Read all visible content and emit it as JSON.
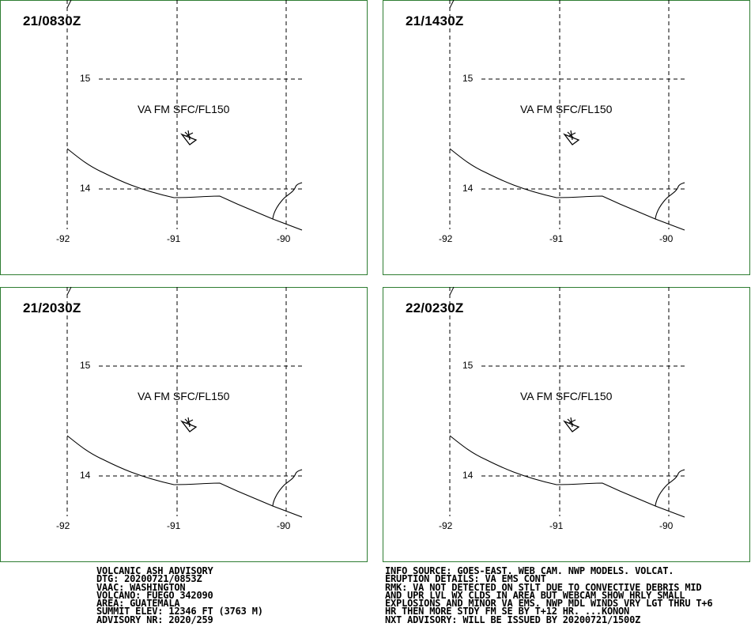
{
  "map": {
    "panels": [
      {
        "time": "21/0830Z",
        "ash_label": "VA FM SFC/FL150"
      },
      {
        "time": "21/1430Z",
        "ash_label": "VA FM SFC/FL150"
      },
      {
        "time": "21/2030Z",
        "ash_label": "VA FM SFC/FL150"
      },
      {
        "time": "22/0230Z",
        "ash_label": "VA FM SFC/FL150"
      }
    ],
    "lat_labels": {
      "north": "15",
      "south": "14"
    },
    "lon_labels": {
      "west": "-92",
      "center": "-91",
      "east": "-90"
    },
    "colors": {
      "frame": "#2e7d32",
      "lines": "#000000"
    }
  },
  "advisory_left": [
    "VOLCANIC ASH ADVISORY",
    "DTG: 20200721/0853Z",
    "VAAC: WASHINGTON",
    "VOLCANO: FUEGO 342090",
    "AREA: GUATEMALA",
    "SUMMIT ELEV: 12346 FT (3763 M)",
    "ADVISORY NR: 2020/259"
  ],
  "advisory_right": [
    "INFO SOURCE: GOES-EAST. WEB CAM. NWP MODELS. VOLCAT.",
    "ERUPTION DETAILS: VA EMS CONT",
    "RMK: VA NOT DETECTED ON STLT DUE TO CONVECTIVE DEBRIS MID",
    "AND UPR LVL WX CLDS IN AREA BUT WEBCAM SHOW HRLY SMALL",
    "EXPLOSIONS AND MINOR VA EMS. NWP MDL WINDS VRY LGT THRU T+6",
    "HR THEN MORE STDY FM SE BY T+12 HR. ...KONON",
    "NXT ADVISORY: WILL BE ISSUED BY 20200721/1500Z"
  ]
}
